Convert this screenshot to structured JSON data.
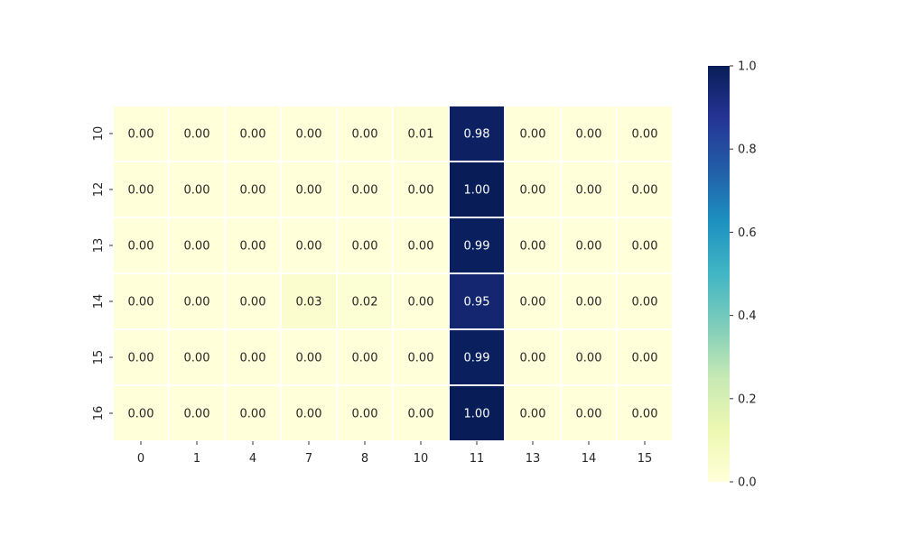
{
  "chart_data": {
    "type": "heatmap",
    "title": "",
    "xlabel": "",
    "ylabel": "",
    "x_categories": [
      "0",
      "1",
      "4",
      "7",
      "8",
      "10",
      "11",
      "13",
      "14",
      "15"
    ],
    "y_categories": [
      "10",
      "12",
      "13",
      "14",
      "15",
      "16"
    ],
    "values": [
      [
        0.0,
        0.0,
        0.0,
        0.0,
        0.0,
        0.01,
        0.98,
        0.0,
        0.0,
        0.0
      ],
      [
        0.0,
        0.0,
        0.0,
        0.0,
        0.0,
        0.0,
        1.0,
        0.0,
        0.0,
        0.0
      ],
      [
        0.0,
        0.0,
        0.0,
        0.0,
        0.0,
        0.0,
        0.99,
        0.0,
        0.0,
        0.0
      ],
      [
        0.0,
        0.0,
        0.0,
        0.03,
        0.02,
        0.0,
        0.95,
        0.0,
        0.0,
        0.0
      ],
      [
        0.0,
        0.0,
        0.0,
        0.0,
        0.0,
        0.0,
        0.99,
        0.0,
        0.0,
        0.0
      ],
      [
        0.0,
        0.0,
        0.0,
        0.0,
        0.0,
        0.0,
        1.0,
        0.0,
        0.0,
        0.0
      ]
    ],
    "annotation_format": "0.00",
    "colormap": "YlGnBu",
    "colormap_stops": [
      "#ffffd9",
      "#edf8b1",
      "#c7e9b4",
      "#7fcdbb",
      "#41b6c4",
      "#1d91c0",
      "#225ea8",
      "#253494",
      "#081d58"
    ],
    "value_range": [
      0,
      1
    ],
    "colorbar": {
      "ticks": [
        "0.0",
        "0.2",
        "0.4",
        "0.6",
        "0.8",
        "1.0"
      ],
      "tick_values": [
        0.0,
        0.2,
        0.4,
        0.6,
        0.8,
        1.0
      ],
      "placement": "right"
    },
    "grid": false
  }
}
